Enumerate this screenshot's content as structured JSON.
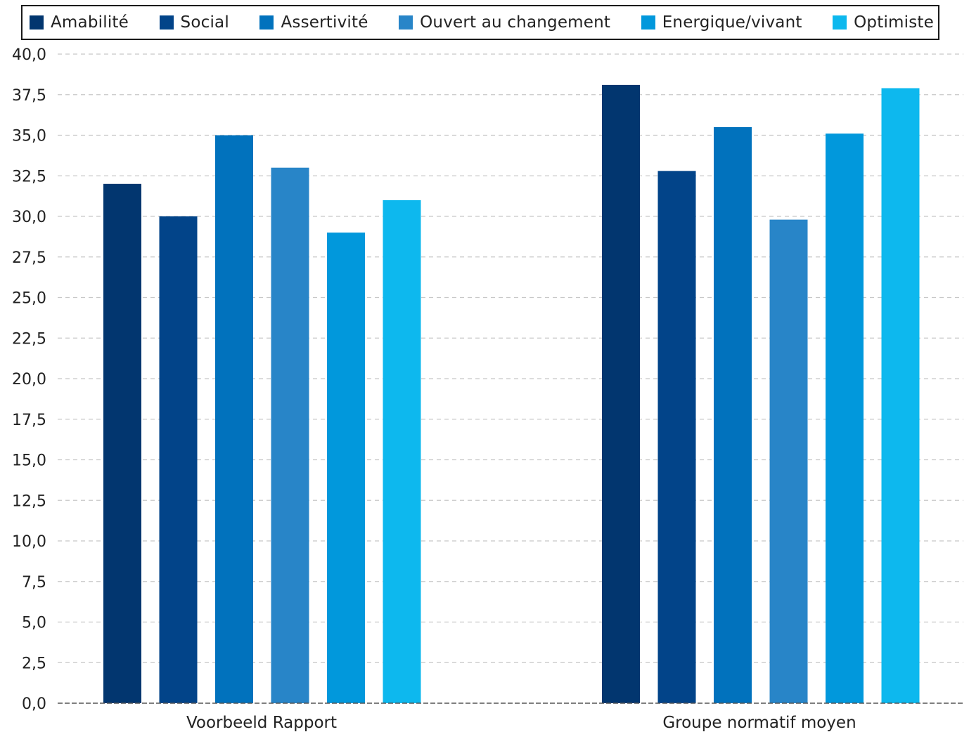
{
  "chart_data": {
    "type": "bar",
    "categories": [
      "Voorbeeld Rapport",
      "Groupe normatif moyen"
    ],
    "series": [
      {
        "name": "Amabilité",
        "color": "#02366f",
        "values": [
          32.0,
          38.1
        ]
      },
      {
        "name": "Social",
        "color": "#024489",
        "values": [
          30.0,
          32.8
        ]
      },
      {
        "name": "Assertivité",
        "color": "#0172bd",
        "values": [
          35.0,
          35.5
        ]
      },
      {
        "name": "Ouvert au changement",
        "color": "#2885c8",
        "values": [
          33.0,
          29.8
        ]
      },
      {
        "name": "Energique/vivant",
        "color": "#0198dc",
        "values": [
          29.0,
          35.1
        ]
      },
      {
        "name": "Optimiste",
        "color": "#0db8ee",
        "values": [
          31.0,
          37.9
        ]
      }
    ],
    "ylim": [
      0,
      40
    ],
    "ytick_step": 2.5,
    "ytick_labels": [
      "0,0",
      "2,5",
      "5,0",
      "7,5",
      "10,0",
      "12,5",
      "15,0",
      "17,5",
      "20,0",
      "22,5",
      "25,0",
      "27,5",
      "30,0",
      "32,5",
      "35,0",
      "37,5",
      "40,0"
    ],
    "grid": true,
    "legend_position": "top",
    "title": "",
    "xlabel": "",
    "ylabel": ""
  }
}
